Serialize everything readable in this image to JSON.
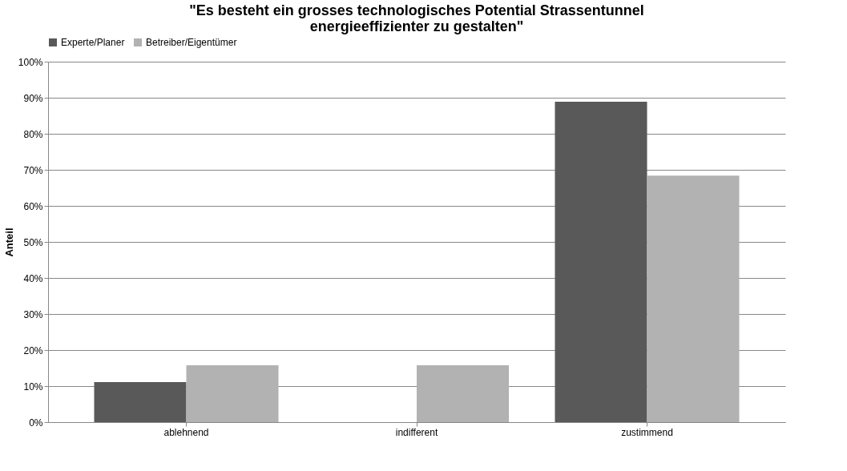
{
  "chart_data": {
    "type": "bar",
    "title": [
      "\"Es besteht ein grosses technologisches Potential Strassentunnel",
      "energieeffizienter zu gestalten\""
    ],
    "ylabel": "Anteil",
    "categories": [
      "ablehnend",
      "indifferent",
      "zustimmend"
    ],
    "series": [
      {
        "name": "Experte/Planer",
        "color": "#595959",
        "values": [
          11.1,
          0,
          88.9
        ]
      },
      {
        "name": "Betreiber/Eigentümer",
        "color": "#b2b2b2",
        "values": [
          15.8,
          15.8,
          68.4
        ]
      }
    ],
    "ylim": [
      0,
      100
    ],
    "yticks": [
      {
        "value": 0,
        "label": "0%"
      },
      {
        "value": 10,
        "label": "10%"
      },
      {
        "value": 20,
        "label": "20%"
      },
      {
        "value": 30,
        "label": "30%"
      },
      {
        "value": 40,
        "label": "40%"
      },
      {
        "value": 50,
        "label": "50%"
      },
      {
        "value": 60,
        "label": "60%"
      },
      {
        "value": 70,
        "label": "70%"
      },
      {
        "value": 80,
        "label": "80%"
      },
      {
        "value": 90,
        "label": "90%"
      },
      {
        "value": 100,
        "label": "100%"
      }
    ],
    "grid": "y",
    "legend": "top"
  }
}
